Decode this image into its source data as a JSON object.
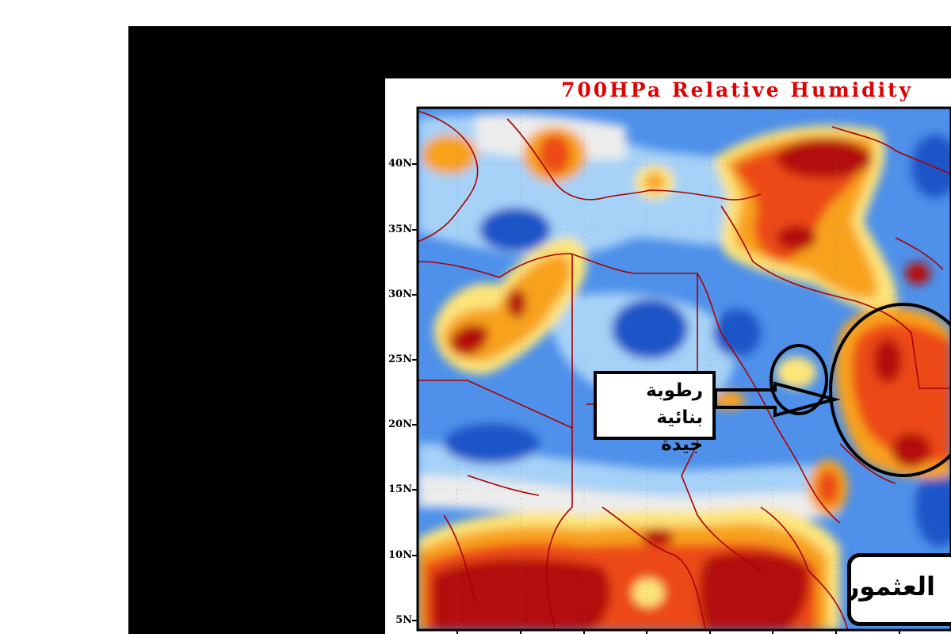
{
  "map": {
    "title": "700HPa Relative Humidity",
    "latitude_labels": [
      "40N",
      "35N",
      "30N",
      "25N",
      "20N",
      "15N",
      "10N",
      "5N"
    ],
    "colors": {
      "very_dry_dark_blue": "#1e55c8",
      "dry_blue": "#4e90ea",
      "light_blue": "#a6d2f7",
      "pale": "#ececec",
      "pale_yellow": "#fde57a",
      "orange": "#f8a21c",
      "red_orange": "#ec4a12",
      "dark_red": "#b40e10",
      "borders": "#a80000",
      "title": "#e00000"
    }
  },
  "annotation": {
    "line1": "رطوبة بنائية",
    "line2": "جيدة"
  },
  "signature": {
    "name": "العثمور"
  }
}
